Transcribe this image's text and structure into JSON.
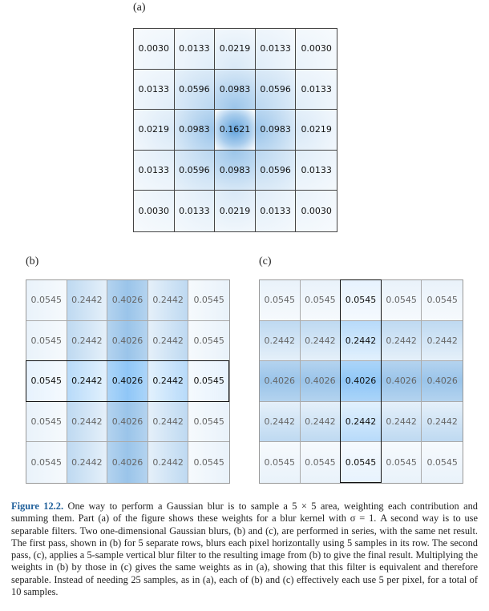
{
  "labels": {
    "a": "(a)",
    "b": "(b)",
    "c": "(c)"
  },
  "grid_a": [
    [
      "0.0030",
      "0.0133",
      "0.0219",
      "0.0133",
      "0.0030"
    ],
    [
      "0.0133",
      "0.0596",
      "0.0983",
      "0.0596",
      "0.0133"
    ],
    [
      "0.0219",
      "0.0983",
      "0.1621",
      "0.0983",
      "0.0219"
    ],
    [
      "0.0133",
      "0.0596",
      "0.0983",
      "0.0596",
      "0.0133"
    ],
    [
      "0.0030",
      "0.0133",
      "0.0219",
      "0.0133",
      "0.0030"
    ]
  ],
  "grid_b": [
    [
      "0.0545",
      "0.2442",
      "0.4026",
      "0.2442",
      "0.0545"
    ],
    [
      "0.0545",
      "0.2442",
      "0.4026",
      "0.2442",
      "0.0545"
    ],
    [
      "0.0545",
      "0.2442",
      "0.4026",
      "0.2442",
      "0.0545"
    ],
    [
      "0.0545",
      "0.2442",
      "0.4026",
      "0.2442",
      "0.0545"
    ],
    [
      "0.0545",
      "0.2442",
      "0.4026",
      "0.2442",
      "0.0545"
    ]
  ],
  "grid_c": [
    [
      "0.0545",
      "0.0545",
      "0.0545",
      "0.0545",
      "0.0545"
    ],
    [
      "0.2442",
      "0.2442",
      "0.2442",
      "0.2442",
      "0.2442"
    ],
    [
      "0.4026",
      "0.4026",
      "0.4026",
      "0.4026",
      "0.4026"
    ],
    [
      "0.2442",
      "0.2442",
      "0.2442",
      "0.2442",
      "0.2442"
    ],
    [
      "0.0545",
      "0.0545",
      "0.0545",
      "0.0545",
      "0.0545"
    ]
  ],
  "highlight": {
    "b_row": 2,
    "c_col": 2
  },
  "colors": {
    "blur": "#5a9fdc",
    "caption_title": "#1f5f9a"
  },
  "caption": {
    "figure": "Figure 12.2.",
    "text": " One way to perform a Gaussian blur is to sample a 5 × 5 area, weighting each contribution and summing them. Part (a) of the figure shows these weights for a blur kernel with σ = 1. A second way is to use separable filters. Two one-dimensional Gaussian blurs, (b) and (c), are performed in series, with the same net result. The first pass, shown in (b) for 5 separate rows, blurs each pixel horizontally using 5 samples in its row. The second pass, (c), applies a 5-sample vertical blur filter to the resulting image from (b) to give the final result. Multiplying the weights in (b) by those in (c) gives the same weights as in (a), showing that this filter is equivalent and therefore separable. Instead of needing 25 samples, as in (a), each of (b) and (c) effectively each use 5 per pixel, for a total of 10 samples."
  }
}
